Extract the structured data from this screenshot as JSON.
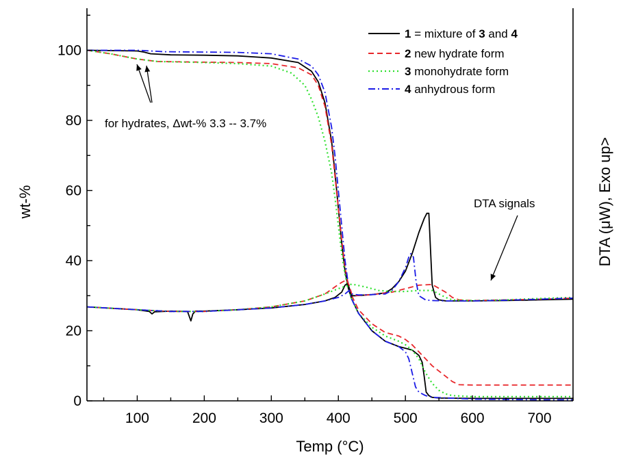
{
  "chart_data": {
    "type": "line",
    "xlabel": "Temp (°C)",
    "ylabel": "wt-%",
    "y2label": "DTA (μW), Exo up>",
    "xlim": [
      25,
      750
    ],
    "ylim": [
      0,
      112
    ],
    "x_ticks": [
      100,
      200,
      300,
      400,
      500,
      600,
      700
    ],
    "y_ticks": [
      0,
      20,
      40,
      60,
      80,
      100
    ],
    "grid": false,
    "legend_position": "top-right",
    "legend": [
      {
        "num": "1",
        "text": " = mixture of ",
        "num2": "3",
        "text2": " and ",
        "num3": "4"
      },
      {
        "num": "2",
        "text": " new hydrate form"
      },
      {
        "num": "3",
        "text": " monohydrate form"
      },
      {
        "num": "4",
        "text": " anhydrous form"
      }
    ],
    "annotations": {
      "hydrates": "for hydrates, Δwt-% 3.3 -- 3.7%",
      "dta": "DTA signals"
    },
    "colors": {
      "s1": "#000000",
      "s2": "#e8262a",
      "s3": "#2ee02e",
      "s4": "#1a1ae6"
    },
    "series": [
      {
        "id": "tga-1",
        "curve": "TGA",
        "style": "solid",
        "color": "#000000",
        "x": [
          25,
          100,
          110,
          120,
          150,
          200,
          250,
          300,
          340,
          360,
          370,
          380,
          390,
          395,
          400,
          405,
          410,
          415,
          420,
          430,
          450,
          470,
          490,
          500,
          510,
          520,
          525,
          528,
          531,
          535,
          540,
          550,
          600,
          650,
          700,
          750
        ],
        "y": [
          100,
          99.8,
          99.5,
          99,
          98.7,
          98.6,
          98.4,
          97.8,
          96.5,
          94,
          91,
          85,
          74,
          65,
          55,
          45,
          37,
          32,
          29,
          25,
          20,
          17,
          15.5,
          15,
          14.5,
          13,
          11,
          7,
          2.5,
          1.5,
          1,
          0.8,
          0.7,
          0.7,
          0.7,
          0.7
        ]
      },
      {
        "id": "tga-2",
        "curve": "TGA",
        "style": "dashed",
        "color": "#e8262a",
        "x": [
          25,
          60,
          100,
          130,
          200,
          250,
          300,
          340,
          360,
          370,
          380,
          390,
          395,
          400,
          405,
          410,
          415,
          420,
          430,
          450,
          470,
          490,
          500,
          510,
          520,
          530,
          540,
          550,
          560,
          570,
          580,
          600,
          700,
          750
        ],
        "y": [
          100,
          99,
          97.5,
          96.8,
          96.6,
          96.5,
          96.2,
          95,
          93,
          90,
          84,
          73,
          64,
          55,
          46,
          38,
          33,
          30,
          26,
          22,
          19.5,
          18.5,
          17.5,
          16,
          14,
          12,
          10,
          8.5,
          7,
          5.5,
          4.6,
          4.5,
          4.5,
          4.5
        ]
      },
      {
        "id": "tga-3",
        "curve": "TGA",
        "style": "dotted",
        "color": "#2ee02e",
        "x": [
          25,
          60,
          100,
          130,
          200,
          250,
          300,
          330,
          350,
          360,
          370,
          380,
          390,
          395,
          400,
          405,
          410,
          415,
          420,
          430,
          450,
          470,
          490,
          500,
          510,
          520,
          530,
          540,
          550,
          560,
          570,
          600,
          700,
          750
        ],
        "y": [
          100,
          99,
          97.5,
          96.8,
          96.5,
          96.2,
          95.5,
          93.5,
          90,
          86,
          81,
          74,
          65,
          58,
          50,
          42,
          36,
          32,
          29,
          25,
          21,
          18.5,
          17,
          16,
          14.5,
          12,
          8,
          5,
          3,
          2,
          1.5,
          1.2,
          1.2,
          1.2
        ]
      },
      {
        "id": "tga-4",
        "curve": "TGA",
        "style": "dashdot",
        "color": "#1a1ae6",
        "x": [
          25,
          100,
          120,
          140,
          200,
          250,
          300,
          340,
          360,
          370,
          380,
          390,
          395,
          400,
          405,
          410,
          415,
          420,
          430,
          450,
          470,
          490,
          500,
          505,
          510,
          515,
          520,
          530,
          540,
          600,
          700,
          750
        ],
        "y": [
          100,
          100,
          99.8,
          99.6,
          99.5,
          99.4,
          99,
          97.5,
          95.5,
          93,
          88,
          78,
          70,
          60,
          50,
          40,
          33,
          29,
          25,
          20,
          17,
          15.5,
          14,
          12,
          8,
          4,
          2.5,
          1.5,
          1,
          0.5,
          0.3,
          0.3
        ]
      },
      {
        "id": "dta-1",
        "curve": "DTA",
        "style": "solid",
        "color": "#000000",
        "x": [
          25,
          100,
          118,
          122,
          126,
          150,
          175,
          180,
          183,
          187,
          200,
          250,
          300,
          350,
          380,
          395,
          405,
          410,
          414,
          418,
          420,
          425,
          450,
          470,
          480,
          490,
          500,
          510,
          520,
          528,
          532,
          535,
          537,
          540,
          545,
          550,
          560,
          600,
          650,
          700,
          750
        ],
        "y": [
          26.8,
          26,
          25.5,
          24.8,
          25.4,
          25.6,
          25.5,
          22.8,
          24.8,
          25.6,
          25.6,
          26,
          26.5,
          27.5,
          28.5,
          29.5,
          31,
          33,
          33.5,
          31,
          30,
          30,
          30.3,
          30.8,
          32,
          34,
          37,
          42,
          48,
          52,
          53.5,
          53.5,
          45,
          33,
          29.5,
          28.8,
          28.5,
          28.5,
          28.6,
          28.8,
          29
        ]
      },
      {
        "id": "dta-2",
        "curve": "DTA",
        "style": "dashed",
        "color": "#e8262a",
        "x": [
          25,
          100,
          150,
          200,
          250,
          300,
          350,
          380,
          395,
          405,
          412,
          416,
          420,
          425,
          450,
          480,
          500,
          520,
          540,
          560,
          570,
          580,
          600,
          650,
          700,
          750
        ],
        "y": [
          26.8,
          26,
          25.5,
          25.5,
          26,
          26.8,
          28.5,
          30.5,
          32.5,
          33.8,
          34.5,
          33,
          30.5,
          30,
          30.3,
          31,
          32,
          33,
          33.2,
          31,
          29.5,
          28.8,
          28.6,
          28.8,
          29,
          29.3
        ]
      },
      {
        "id": "dta-3",
        "curve": "DTA",
        "style": "dotted",
        "color": "#2ee02e",
        "x": [
          25,
          100,
          150,
          200,
          250,
          300,
          350,
          380,
          400,
          420,
          440,
          460,
          480,
          500,
          520,
          540,
          550,
          560,
          570,
          600,
          650,
          700,
          750
        ],
        "y": [
          26.8,
          26,
          25.5,
          25.5,
          26,
          26.8,
          28.5,
          30.5,
          32,
          33.3,
          32.5,
          31.5,
          31.2,
          31.2,
          31.5,
          31.5,
          30.5,
          29.5,
          28.8,
          28.6,
          28.8,
          29.2,
          29.5
        ]
      },
      {
        "id": "dta-4",
        "curve": "DTA",
        "style": "dashdot",
        "color": "#1a1ae6",
        "x": [
          25,
          100,
          150,
          200,
          250,
          300,
          350,
          380,
          400,
          410,
          416,
          420,
          430,
          450,
          470,
          480,
          490,
          500,
          505,
          508,
          512,
          516,
          520,
          530,
          540,
          560,
          600,
          650,
          700,
          750
        ],
        "y": [
          26.8,
          26,
          25.5,
          25.5,
          26,
          26.5,
          27.5,
          28.5,
          29.5,
          30.5,
          31.5,
          30.5,
          30.2,
          30.3,
          30.5,
          31.5,
          34,
          38,
          41,
          42,
          41,
          34,
          30,
          28.8,
          28.6,
          28.5,
          28.5,
          28.7,
          29,
          29.3
        ]
      }
    ]
  }
}
